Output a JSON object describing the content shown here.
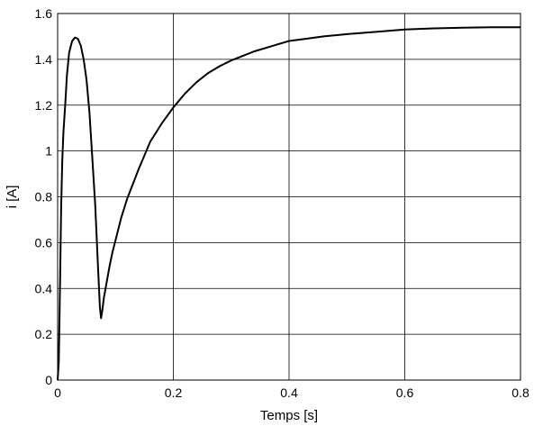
{
  "chart_data": {
    "type": "line",
    "title": "",
    "xlabel": "Temps [s]",
    "ylabel": "i [A]",
    "xlim": [
      0,
      0.8
    ],
    "ylim": [
      0,
      1.6
    ],
    "grid": true,
    "x_ticks": [
      0,
      0.2,
      0.4,
      0.6,
      0.8
    ],
    "x_tick_labels": [
      "0",
      "0.2",
      "0.4",
      "0.6",
      "0.8"
    ],
    "y_ticks": [
      0,
      0.2,
      0.4,
      0.6,
      0.8,
      1.0,
      1.2,
      1.4,
      1.6
    ],
    "y_tick_labels": [
      "0",
      "0.2",
      "0.4",
      "0.6",
      "0.8",
      "1",
      "1.2",
      "1.4",
      "1.6"
    ],
    "series": [
      {
        "color": "#000000",
        "x": [
          0,
          0.002,
          0.004,
          0.006,
          0.008,
          0.01,
          0.013,
          0.016,
          0.02,
          0.025,
          0.03,
          0.035,
          0.04,
          0.045,
          0.05,
          0.055,
          0.06,
          0.065,
          0.07,
          0.073,
          0.075,
          0.077,
          0.08,
          0.085,
          0.09,
          0.095,
          0.1,
          0.11,
          0.12,
          0.14,
          0.16,
          0.18,
          0.2,
          0.22,
          0.24,
          0.26,
          0.28,
          0.3,
          0.32,
          0.34,
          0.36,
          0.38,
          0.4,
          0.43,
          0.46,
          0.5,
          0.55,
          0.6,
          0.65,
          0.7,
          0.75,
          0.8
        ],
        "y": [
          0,
          0.08,
          0.4,
          0.75,
          0.95,
          1.08,
          1.2,
          1.33,
          1.43,
          1.48,
          1.495,
          1.49,
          1.46,
          1.4,
          1.31,
          1.17,
          0.97,
          0.76,
          0.48,
          0.32,
          0.27,
          0.3,
          0.36,
          0.43,
          0.5,
          0.56,
          0.61,
          0.71,
          0.79,
          0.92,
          1.04,
          1.12,
          1.19,
          1.25,
          1.3,
          1.34,
          1.37,
          1.395,
          1.415,
          1.435,
          1.45,
          1.465,
          1.48,
          1.49,
          1.5,
          1.51,
          1.52,
          1.53,
          1.535,
          1.538,
          1.54,
          1.54
        ]
      }
    ]
  }
}
